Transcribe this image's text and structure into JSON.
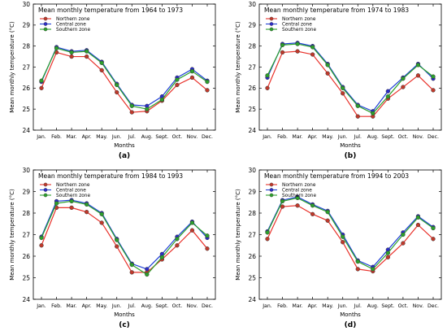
{
  "chart_data": [
    {
      "type": "line",
      "panel_label": "(a)",
      "title": "Mean monthly temperature from 1964 to 1973",
      "xlabel": "Months",
      "ylabel": "Mean monthly temperature (°C)",
      "ylim": [
        24,
        30
      ],
      "yticks": [
        24,
        25,
        26,
        27,
        28,
        29,
        30
      ],
      "categories": [
        "Jan.",
        "Feb.",
        "Mar.",
        "Apr.",
        "May.",
        "Jun.",
        "Jul.",
        "Aug.",
        "Sept.",
        "Oct.",
        "Nov.",
        "Dec."
      ],
      "legend_position": "top-left",
      "grid": false,
      "series": [
        {
          "name": "Northern zone",
          "color": "#e8312a",
          "marker": "#c0392b",
          "values": [
            26.0,
            27.7,
            27.5,
            27.5,
            26.85,
            25.8,
            24.85,
            24.9,
            25.4,
            26.15,
            26.5,
            25.9
          ]
        },
        {
          "name": "Central zone",
          "color": "#1f3fd6",
          "marker": "#2c2cc8",
          "values": [
            26.3,
            27.95,
            27.75,
            27.8,
            27.25,
            26.2,
            25.2,
            25.15,
            25.6,
            26.5,
            26.9,
            26.35
          ]
        },
        {
          "name": "Southern zone",
          "color": "#2ca02c",
          "marker": "#2ca02c",
          "values": [
            26.35,
            27.9,
            27.7,
            27.75,
            27.2,
            26.15,
            25.15,
            25.0,
            25.45,
            26.4,
            26.8,
            26.3
          ]
        }
      ]
    },
    {
      "type": "line",
      "panel_label": "(b)",
      "title": "Mean monthly temperature from 1974 to 1983",
      "xlabel": "Months",
      "ylabel": "Mean monthly temperature (°C)",
      "ylim": [
        24,
        30
      ],
      "yticks": [
        24,
        25,
        26,
        27,
        28,
        29,
        30
      ],
      "categories": [
        "Jan.",
        "Feb.",
        "Mar.",
        "Apr.",
        "May.",
        "Jun.",
        "Jul.",
        "Aug.",
        "Sept.",
        "Oct.",
        "Nov.",
        "Dec."
      ],
      "legend_position": "top-left",
      "grid": false,
      "series": [
        {
          "name": "Northern zone",
          "color": "#e8312a",
          "marker": "#c0392b",
          "values": [
            26.0,
            27.7,
            27.75,
            27.6,
            26.7,
            25.75,
            24.65,
            24.65,
            25.5,
            26.05,
            26.6,
            25.9
          ]
        },
        {
          "name": "Central zone",
          "color": "#1f3fd6",
          "marker": "#2c2cc8",
          "values": [
            26.5,
            28.1,
            28.15,
            28.0,
            27.15,
            26.05,
            25.2,
            24.9,
            25.85,
            26.5,
            27.15,
            26.45
          ]
        },
        {
          "name": "Southern zone",
          "color": "#2ca02c",
          "marker": "#2ca02c",
          "values": [
            26.6,
            28.05,
            28.1,
            27.95,
            27.1,
            26.0,
            25.15,
            24.8,
            25.6,
            26.45,
            27.1,
            26.55
          ]
        }
      ]
    },
    {
      "type": "line",
      "panel_label": "(c)",
      "title": "Mean monthly temperature from 1984 to 1993",
      "xlabel": "Months",
      "ylabel": "Mean monthly temperature (°C)",
      "ylim": [
        24,
        30
      ],
      "yticks": [
        24,
        25,
        26,
        27,
        28,
        29,
        30
      ],
      "categories": [
        "Jan.",
        "Feb.",
        "Mar.",
        "Apr.",
        "May.",
        "Jun.",
        "Jul.",
        "Aug.",
        "Sept.",
        "Oct.",
        "Nov.",
        "Dec."
      ],
      "legend_position": "top-left",
      "grid": false,
      "series": [
        {
          "name": "Northern zone",
          "color": "#e8312a",
          "marker": "#c0392b",
          "values": [
            26.5,
            28.25,
            28.25,
            28.05,
            27.55,
            26.45,
            25.25,
            25.25,
            25.85,
            26.5,
            27.2,
            26.35
          ]
        },
        {
          "name": "Central zone",
          "color": "#1f3fd6",
          "marker": "#2c2cc8",
          "values": [
            26.9,
            28.55,
            28.6,
            28.45,
            28.0,
            26.8,
            25.65,
            25.4,
            26.1,
            26.9,
            27.6,
            26.85
          ]
        },
        {
          "name": "Southern zone",
          "color": "#2ca02c",
          "marker": "#2ca02c",
          "values": [
            26.85,
            28.45,
            28.55,
            28.4,
            27.95,
            26.75,
            25.6,
            25.15,
            25.95,
            26.8,
            27.55,
            26.95
          ]
        }
      ]
    },
    {
      "type": "line",
      "panel_label": "(d)",
      "title": "Mean monthly temperature from 1994 to 2003",
      "xlabel": "Months",
      "ylabel": "Mean monthly temperature (°C)",
      "ylim": [
        24,
        30
      ],
      "yticks": [
        24,
        25,
        26,
        27,
        28,
        29,
        30
      ],
      "categories": [
        "Jan.",
        "Feb.",
        "Mar.",
        "Apr.",
        "May.",
        "Jun.",
        "Jul.",
        "Aug.",
        "Sept.",
        "Oct.",
        "Nov.",
        "Dec."
      ],
      "legend_position": "top-left",
      "grid": false,
      "series": [
        {
          "name": "Northern zone",
          "color": "#e8312a",
          "marker": "#c0392b",
          "values": [
            26.8,
            28.3,
            28.35,
            27.95,
            27.65,
            26.65,
            25.4,
            25.3,
            25.95,
            26.6,
            27.45,
            26.8
          ]
        },
        {
          "name": "Central zone",
          "color": "#1f3fd6",
          "marker": "#2c2cc8",
          "values": [
            27.15,
            28.6,
            28.75,
            28.4,
            28.1,
            27.0,
            25.8,
            25.5,
            26.3,
            27.1,
            27.85,
            27.35
          ]
        },
        {
          "name": "Southern zone",
          "color": "#2ca02c",
          "marker": "#2ca02c",
          "values": [
            27.1,
            28.55,
            28.7,
            28.35,
            28.05,
            26.9,
            25.75,
            25.4,
            26.15,
            27.0,
            27.8,
            27.3
          ]
        }
      ]
    }
  ]
}
